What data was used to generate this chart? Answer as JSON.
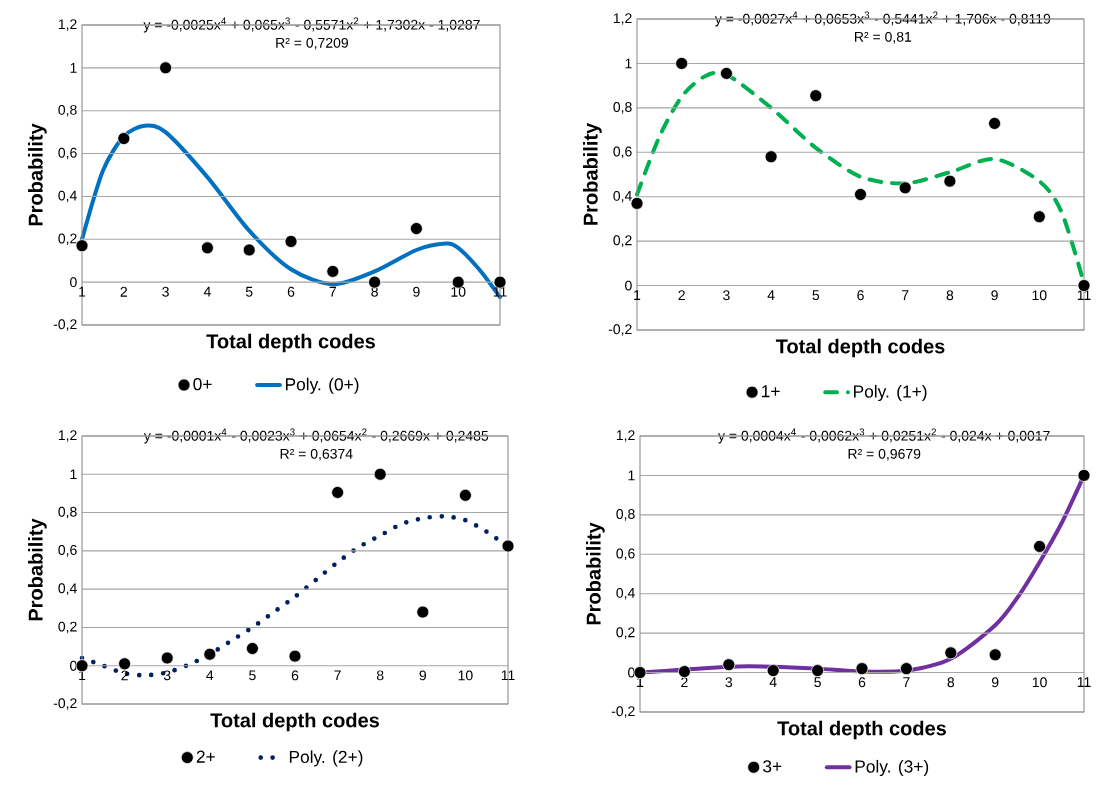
{
  "chart_data": [
    {
      "type": "scatter",
      "xlabel": "Total depth codes",
      "ylabel": "Probability",
      "annotations": [
        "y = -0,0025x$^{4}$ + 0,065x$^{3}$ - 0,5571x$^{2}$ + 1,7302x - 1,0287",
        "R² = 0,7209"
      ],
      "x": [
        1,
        2,
        3,
        4,
        5,
        6,
        7,
        8,
        9,
        10,
        11
      ],
      "xlim": [
        1,
        11
      ],
      "xticks": [
        1,
        2,
        3,
        4,
        5,
        6,
        7,
        8,
        9,
        10,
        11
      ],
      "ylim": [
        -0.2,
        1.2
      ],
      "yticks": [
        {
          "value": -0.2,
          "label": "-0,2"
        },
        0,
        {
          "value": 0.2,
          "label": "0,2"
        },
        {
          "value": 0.4,
          "label": "0,4"
        },
        {
          "value": 0.6,
          "label": "0,6"
        },
        {
          "value": 0.8,
          "label": "0,8"
        },
        1,
        {
          "value": 1.2,
          "label": "1,2"
        }
      ],
      "grid": "y",
      "legend": "bottom",
      "series": [
        {
          "name": "0+",
          "color": "#000000",
          "marker": "circle",
          "values": [
            0.17,
            0.67,
            1.0,
            0.16,
            0.15,
            0.19,
            0.05,
            0,
            0.25,
            0,
            0
          ]
        },
        {
          "name": "Poly. (0+)",
          "type": "line",
          "marker": "none",
          "line_style": "solid",
          "color": "#0070c0",
          "x": [
            1,
            1.5,
            2,
            2.5,
            3,
            4,
            5,
            6,
            7,
            8,
            9,
            9.7,
            10,
            10.5,
            11
          ],
          "values": [
            0.2,
            0.52,
            0.68,
            0.73,
            0.7,
            0.49,
            0.24,
            0.06,
            -0.01,
            0.05,
            0.15,
            0.18,
            0.16,
            0.06,
            -0.07
          ]
        }
      ]
    },
    {
      "type": "scatter",
      "xlabel": "Total depth codes",
      "ylabel": "Probability",
      "annotations": [
        "y = -0,0027x$^{4}$ + 0,0653x$^{3}$ - 0,5441x$^{2}$ + 1,706x - 0,8119",
        "R² = 0,81"
      ],
      "x": [
        1,
        2,
        3,
        4,
        5,
        6,
        7,
        8,
        9,
        10,
        11
      ],
      "xlim": [
        1,
        11
      ],
      "xticks": [
        1,
        2,
        3,
        4,
        5,
        6,
        7,
        8,
        9,
        10,
        11
      ],
      "ylim": [
        -0.2,
        1.2
      ],
      "yticks": [
        {
          "value": -0.2,
          "label": "-0,2"
        },
        0,
        {
          "value": 0.2,
          "label": "0,2"
        },
        {
          "value": 0.4,
          "label": "0,4"
        },
        {
          "value": 0.6,
          "label": "0,6"
        },
        {
          "value": 0.8,
          "label": "0,8"
        },
        1,
        {
          "value": 1.2,
          "label": "1,2"
        }
      ],
      "grid": "y",
      "legend": "bottom",
      "series": [
        {
          "name": "1+",
          "color": "#000000",
          "marker": "circle",
          "values": [
            0.37,
            1.0,
            0.955,
            0.58,
            0.855,
            0.41,
            0.44,
            0.47,
            0.73,
            0.31,
            0
          ]
        },
        {
          "name": "Poly. (1+)",
          "type": "line",
          "marker": "none",
          "line_style": "dashed",
          "color": "#00b050",
          "x": [
            1,
            1.5,
            2,
            2.5,
            3,
            4,
            5,
            6,
            7,
            8,
            9,
            10,
            10.5,
            11
          ],
          "values": [
            0.41,
            0.67,
            0.85,
            0.94,
            0.95,
            0.8,
            0.62,
            0.49,
            0.46,
            0.51,
            0.57,
            0.47,
            0.33,
            0.01
          ]
        }
      ]
    },
    {
      "type": "scatter",
      "xlabel": "Total depth codes",
      "ylabel": "Probability",
      "annotations": [
        "y = -0,0001x$^{4}$ - 0,0023x$^{3}$ + 0,0654x$^{2}$ - 0,2669x + 0,2485",
        "R² = 0,6374"
      ],
      "x": [
        1,
        2,
        3,
        4,
        5,
        6,
        7,
        8,
        9,
        10,
        11
      ],
      "xlim": [
        1,
        11
      ],
      "xticks": [
        1,
        2,
        3,
        4,
        5,
        6,
        7,
        8,
        9,
        10,
        11
      ],
      "ylim": [
        -0.2,
        1.2
      ],
      "yticks": [
        {
          "value": -0.2,
          "label": "-0,2"
        },
        0,
        {
          "value": 0.2,
          "label": "0,2"
        },
        {
          "value": 0.4,
          "label": "0,4"
        },
        {
          "value": 0.6,
          "label": "0,6"
        },
        {
          "value": 0.8,
          "label": "0,8"
        },
        1,
        {
          "value": 1.2,
          "label": "1,2"
        }
      ],
      "grid": "y",
      "legend": "bottom",
      "series": [
        {
          "name": "2+",
          "color": "#000000",
          "marker": "circle",
          "values": [
            0,
            0.01,
            0.04,
            0.06,
            0.09,
            0.05,
            0.905,
            1.0,
            0.28,
            0.89,
            0.625
          ]
        },
        {
          "name": "Poly. (2+)",
          "type": "line",
          "marker": "none",
          "line_style": "dotted",
          "color": "#002060",
          "x": [
            1,
            1.5,
            2,
            2.5,
            3,
            3.5,
            4,
            4.5,
            5,
            5.5,
            6,
            6.5,
            7,
            7.5,
            8,
            8.5,
            9,
            9.5,
            10,
            10.5,
            11
          ],
          "values": [
            0.04,
            0.0,
            -0.04,
            -0.05,
            -0.035,
            0.005,
            0.06,
            0.13,
            0.2,
            0.28,
            0.36,
            0.45,
            0.54,
            0.62,
            0.68,
            0.74,
            0.77,
            0.78,
            0.76,
            0.7,
            0.62
          ]
        }
      ]
    },
    {
      "type": "scatter",
      "xlabel": "Total depth codes",
      "ylabel": "Probability",
      "annotations": [
        "y = 0,0004x$^{4}$ - 0,0062x$^{3}$ + 0,0251x$^{2}$ - 0,024x + 0,0017",
        "R² = 0,9679"
      ],
      "x": [
        1,
        2,
        3,
        4,
        5,
        6,
        7,
        8,
        9,
        10,
        11
      ],
      "xlim": [
        1,
        11
      ],
      "xticks": [
        1,
        2,
        3,
        4,
        5,
        6,
        7,
        8,
        9,
        10,
        11
      ],
      "ylim": [
        -0.2,
        1.2
      ],
      "yticks": [
        {
          "value": -0.2,
          "label": "-0,2"
        },
        0,
        {
          "value": 0.2,
          "label": "0,2"
        },
        {
          "value": 0.4,
          "label": "0,4"
        },
        {
          "value": 0.6,
          "label": "0,6"
        },
        {
          "value": 0.8,
          "label": "0,8"
        },
        1,
        {
          "value": 1.2,
          "label": "1,2"
        }
      ],
      "grid": "y",
      "legend": "bottom",
      "series": [
        {
          "name": "3+",
          "color": "#000000",
          "marker": "circle",
          "values": [
            0,
            0.005,
            0.04,
            0.01,
            0.01,
            0.02,
            0.02,
            0.1,
            0.09,
            0.64,
            1.0
          ]
        },
        {
          "name": "Poly. (3+)",
          "type": "line",
          "marker": "none",
          "line_style": "solid",
          "color": "#7030a0",
          "x": [
            1,
            2,
            3,
            4,
            5,
            6,
            7,
            8,
            9,
            9.5,
            10,
            10.5,
            11
          ],
          "values": [
            0.0,
            0.015,
            0.03,
            0.03,
            0.02,
            0.005,
            0.01,
            0.07,
            0.24,
            0.38,
            0.56,
            0.76,
            1.0
          ]
        }
      ]
    }
  ]
}
